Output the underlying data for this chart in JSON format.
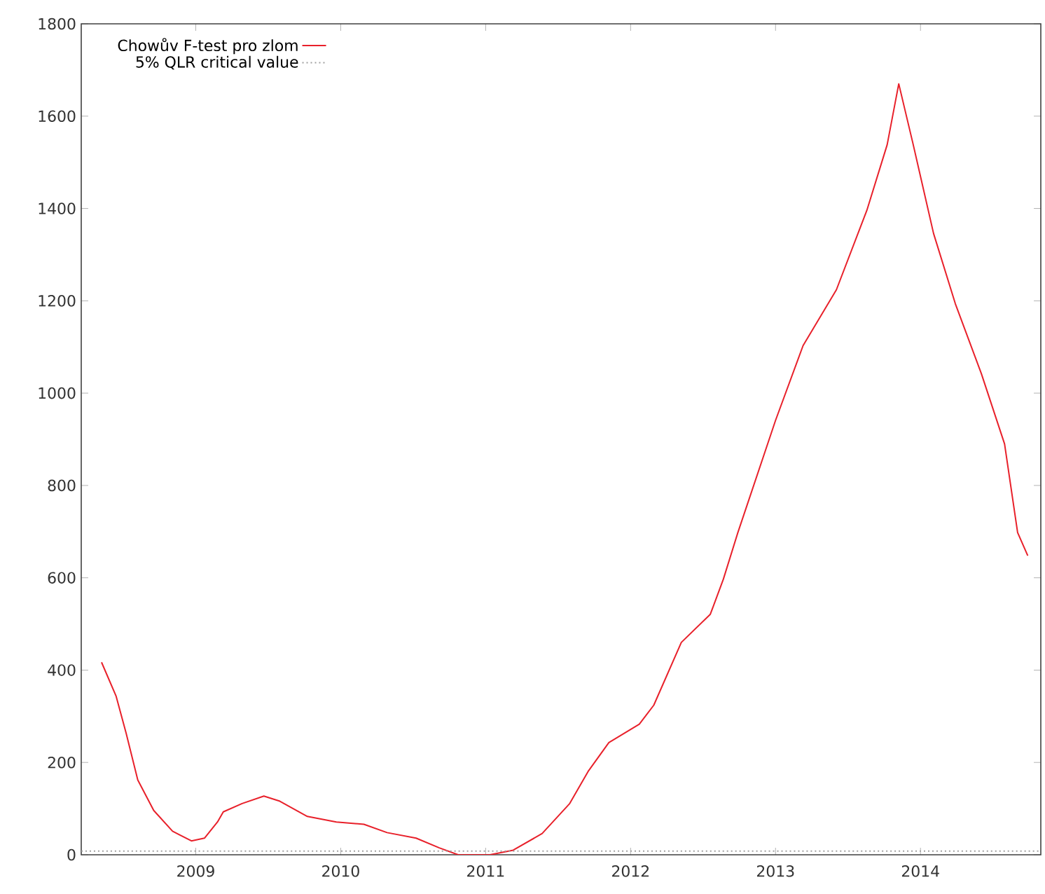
{
  "chart_data": {
    "type": "line",
    "x": [
      2008.35,
      2008.45,
      2008.52,
      2008.6,
      2008.71,
      2008.84,
      2008.97,
      2009.06,
      2009.15,
      2009.19,
      2009.32,
      2009.47,
      2009.58,
      2009.77,
      2009.97,
      2010.16,
      2010.32,
      2010.52,
      2010.68,
      2010.81,
      2011.03,
      2011.19,
      2011.39,
      2011.58,
      2011.71,
      2011.85,
      2012.06,
      2012.16,
      2012.35,
      2012.55,
      2012.64,
      2012.74,
      2013.0,
      2013.19,
      2013.42,
      2013.63,
      2013.77,
      2013.85,
      2013.95,
      2014.09,
      2014.24,
      2014.42,
      2014.58,
      2014.67,
      2014.74
    ],
    "series": [
      {
        "name": "Chowův F-test pro zlom",
        "color": "#e8202a",
        "values": [
          417,
          344,
          263,
          162,
          96,
          51,
          30,
          36,
          71,
          93,
          111,
          127,
          116,
          83,
          71,
          66,
          48,
          36,
          15,
          0,
          0,
          10,
          46,
          111,
          182,
          243,
          283,
          324,
          460,
          521,
          597,
          698,
          941,
          1103,
          1224,
          1396,
          1538,
          1670,
          1538,
          1346,
          1194,
          1042,
          890,
          698,
          648
        ]
      }
    ],
    "ref_lines": [
      {
        "axis": "y",
        "value": 8,
        "label": "5% QLR critical value",
        "color": "#a0a0a0",
        "line_style": "dotted"
      }
    ],
    "xlim": [
      2008.21,
      2014.83
    ],
    "ylim": [
      0,
      1800
    ],
    "xticks": [
      2009,
      2010,
      2011,
      2012,
      2013,
      2014
    ],
    "yticks": [
      0,
      200,
      400,
      600,
      800,
      1000,
      1200,
      1400,
      1600,
      1800
    ],
    "legend": "top left",
    "line_style": "solid",
    "marker": "none",
    "grid": false
  }
}
